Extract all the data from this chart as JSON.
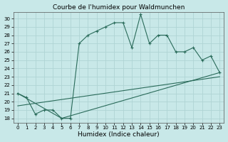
{
  "title": "Courbe de l'humidex pour Waldmunchen",
  "xlabel": "Humidex (Indice chaleur)",
  "ylabel": "",
  "bg_color": "#c8e8e8",
  "grid_color": "#afd4d4",
  "line_color": "#2a6b5a",
  "x_ticks": [
    0,
    1,
    2,
    3,
    4,
    5,
    6,
    7,
    8,
    9,
    10,
    11,
    12,
    13,
    14,
    15,
    16,
    17,
    18,
    19,
    20,
    21,
    22,
    23
  ],
  "y_ticks": [
    18,
    19,
    20,
    21,
    22,
    23,
    24,
    25,
    26,
    27,
    28,
    29,
    30
  ],
  "xlim": [
    -0.5,
    23.5
  ],
  "ylim": [
    17.5,
    30.8
  ],
  "line1_x": [
    0,
    1,
    2,
    3,
    4,
    5,
    6,
    7,
    8,
    9,
    10,
    11,
    12,
    13,
    14,
    15,
    16,
    17,
    18,
    19,
    20,
    21,
    22,
    23
  ],
  "line1_y": [
    21.0,
    20.5,
    18.5,
    19.0,
    19.0,
    18.0,
    18.0,
    27.0,
    28.0,
    28.5,
    29.0,
    29.5,
    29.5,
    26.5,
    30.5,
    27.0,
    28.0,
    28.0,
    26.0,
    26.0,
    26.5,
    25.0,
    25.5,
    23.5
  ],
  "line2_x": [
    0,
    5,
    23
  ],
  "line2_y": [
    21.0,
    18.0,
    23.5
  ],
  "line3_x": [
    0,
    23
  ],
  "line3_y": [
    19.5,
    23.0
  ],
  "title_fontsize": 6.5,
  "xlabel_fontsize": 6.5,
  "tick_fontsize": 5.0
}
